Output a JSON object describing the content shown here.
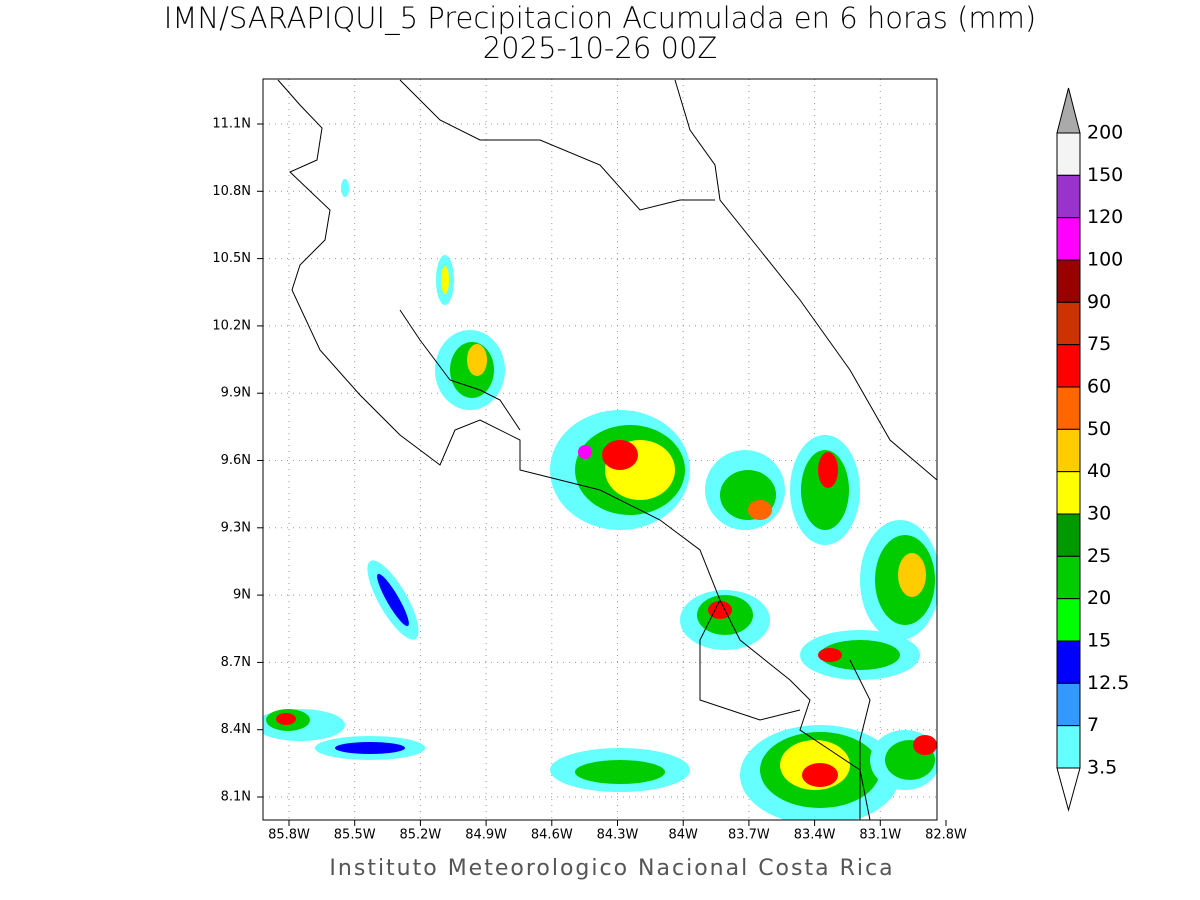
{
  "title": "IMN/SARAPIQUI_5 Precipitacion Acumulada en 6 horas (mm)",
  "subtitle": "2025-10-26 00Z",
  "map": {
    "lon_ticks": [
      "85.8W",
      "85.5W",
      "85.2W",
      "84.9W",
      "84.6W",
      "84.3W",
      "84W",
      "83.7W",
      "83.4W",
      "83.1W",
      "82.8W"
    ],
    "lat_ticks": [
      "11.1N",
      "10.8N",
      "10.5N",
      "10.2N",
      "9.9N",
      "9.6N",
      "9.3N",
      "9N",
      "8.7N",
      "8.4N",
      "8.1N"
    ]
  },
  "legend": {
    "levels": [
      "200",
      "150",
      "120",
      "100",
      "90",
      "75",
      "60",
      "50",
      "40",
      "30",
      "25",
      "20",
      "15",
      "12.5",
      "7",
      "3.5"
    ],
    "colors": [
      "#f4f4f4",
      "#9933cc",
      "#ff00ff",
      "#990000",
      "#cc3300",
      "#ff0000",
      "#ff6600",
      "#ffcc00",
      "#ffff00",
      "#009900",
      "#00cc00",
      "#00ff00",
      "#0000ff",
      "#3399ff",
      "#66ffff"
    ]
  },
  "footer": "Instituto Meteorologico Nacional Costa Rica"
}
